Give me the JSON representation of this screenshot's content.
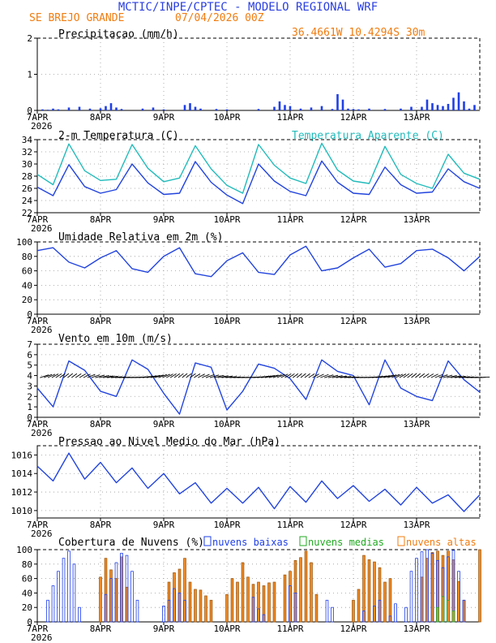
{
  "header": {
    "title": "MCTIC/INPE/CPTEC - MODELO REGIONAL WRF",
    "location": "SE BREJO GRANDE",
    "run": "07/04/2026 00Z",
    "coords": "36.4661W 10.4294S 30m"
  },
  "colors": {
    "title": "#2a3fe0",
    "orange": "#f07c10",
    "blue": "#2244dd",
    "cyan": "#22bbbb",
    "green": "#22aa22",
    "bar_blue": "#1f3fe6",
    "bar_orange": "#f08a24"
  },
  "x_axis": {
    "ticks": [
      "7APR",
      "8APR",
      "9APR",
      "10APR",
      "11APR",
      "12APR",
      "13APR"
    ],
    "year": "2026",
    "hours": 168
  },
  "panels": {
    "precip": {
      "title": "Precipitacao (mm/h)"
    },
    "temp": {
      "title": "2-m Temperatura (C)",
      "legend_apparent": "Temperatura Aparente (C)"
    },
    "rh": {
      "title": "Umidade Relativa em 2m (%)"
    },
    "wind": {
      "title": "Vento em 10m (m/s)"
    },
    "pres": {
      "title": "Pressao ao Nivel Medio do Mar (hPa)"
    },
    "cloud": {
      "title": "Cobertura de Nuvens (%)",
      "legend_low": "nuvens baixas",
      "legend_mid": "nuvens medias",
      "legend_high": "nuvens altas"
    }
  },
  "chart_data": [
    {
      "type": "bar",
      "title": "Precipitacao (mm/h)",
      "ylim": [
        0,
        2
      ],
      "yticks": [
        "0",
        "1",
        "2"
      ],
      "x_hours": [
        2,
        4,
        6,
        8,
        12,
        16,
        20,
        24,
        26,
        28,
        30,
        32,
        40,
        44,
        48,
        56,
        58,
        60,
        62,
        68,
        72,
        84,
        90,
        92,
        94,
        96,
        100,
        104,
        108,
        112,
        114,
        116,
        118,
        120,
        122,
        126,
        132,
        138,
        142,
        146,
        148,
        150,
        152,
        154,
        156,
        158,
        160,
        162,
        164,
        166
      ],
      "values": [
        0.03,
        0.02,
        0.05,
        0.03,
        0.08,
        0.1,
        0.05,
        0.06,
        0.12,
        0.2,
        0.08,
        0.04,
        0.05,
        0.08,
        0.03,
        0.15,
        0.2,
        0.1,
        0.05,
        0.04,
        0.03,
        0.04,
        0.1,
        0.25,
        0.15,
        0.12,
        0.05,
        0.08,
        0.12,
        0.04,
        0.45,
        0.3,
        0.05,
        0.04,
        0.03,
        0.05,
        0.04,
        0.05,
        0.1,
        0.1,
        0.3,
        0.2,
        0.15,
        0.12,
        0.18,
        0.35,
        0.5,
        0.25,
        0.05,
        0.15
      ]
    },
    {
      "type": "line",
      "title": "2-m Temperatura (C)",
      "ylim": [
        22,
        34
      ],
      "yticks": [
        "22",
        "24",
        "26",
        "28",
        "30",
        "32",
        "34"
      ],
      "x_hours": [
        0,
        6,
        12,
        18,
        24,
        30,
        36,
        42,
        48,
        54,
        60,
        66,
        72,
        78,
        84,
        90,
        96,
        102,
        108,
        114,
        120,
        126,
        132,
        138,
        144,
        150,
        156,
        162,
        168
      ],
      "series": [
        {
          "name": "2-m Temperatura (C)",
          "values": [
            26.2,
            24.8,
            29.9,
            26.3,
            25.2,
            25.8,
            30.0,
            26.9,
            25.0,
            25.2,
            30.4,
            27.0,
            24.9,
            23.5,
            30.0,
            27.2,
            25.5,
            24.8,
            30.5,
            27.0,
            25.2,
            25.0,
            29.5,
            26.6,
            25.2,
            25.4,
            29.2,
            27.1,
            26.0
          ]
        },
        {
          "name": "Temperatura Aparente (C)",
          "values": [
            28.3,
            26.6,
            33.3,
            28.9,
            27.3,
            27.5,
            33.2,
            29.3,
            27.1,
            27.7,
            33.0,
            29.2,
            26.5,
            25.2,
            33.2,
            29.8,
            27.7,
            26.8,
            33.4,
            29.0,
            27.2,
            26.8,
            32.9,
            28.3,
            26.8,
            26.0,
            31.6,
            28.5,
            27.5
          ]
        }
      ]
    },
    {
      "type": "line",
      "title": "Umidade Relativa em 2m (%)",
      "ylim": [
        0,
        100
      ],
      "yticks": [
        "0",
        "20",
        "40",
        "60",
        "80",
        "100"
      ],
      "x_hours": [
        0,
        6,
        12,
        18,
        24,
        30,
        36,
        42,
        48,
        54,
        60,
        66,
        72,
        78,
        84,
        90,
        96,
        102,
        108,
        114,
        120,
        126,
        132,
        138,
        144,
        150,
        156,
        162,
        168
      ],
      "series": [
        {
          "name": "",
          "values": [
            88,
            92,
            72,
            64,
            78,
            88,
            63,
            58,
            80,
            92,
            56,
            52,
            74,
            85,
            58,
            55,
            82,
            94,
            60,
            64,
            78,
            90,
            65,
            70,
            88,
            90,
            78,
            60,
            80
          ]
        }
      ]
    },
    {
      "type": "line",
      "title": "Vento em 10m (m/s)",
      "ylim": [
        0,
        7
      ],
      "yticks": [
        "0",
        "1",
        "2",
        "3",
        "4",
        "5",
        "6",
        "7"
      ],
      "x_hours": [
        0,
        6,
        12,
        18,
        24,
        30,
        36,
        42,
        48,
        54,
        60,
        66,
        72,
        78,
        84,
        90,
        96,
        102,
        108,
        114,
        120,
        126,
        132,
        138,
        144,
        150,
        156,
        162,
        168
      ],
      "series": [
        {
          "name": "",
          "values": [
            2.8,
            1.0,
            5.4,
            4.5,
            2.5,
            2.0,
            5.5,
            4.6,
            2.3,
            0.3,
            5.2,
            4.8,
            0.7,
            2.5,
            5.1,
            4.7,
            3.7,
            1.7,
            5.5,
            4.4,
            4.0,
            1.2,
            5.5,
            2.8,
            2.0,
            1.6,
            5.4,
            3.6,
            2.4
          ]
        }
      ]
    },
    {
      "type": "line",
      "title": "Pressao ao Nivel Medio do Mar (hPa)",
      "ylim": [
        1009.2,
        1017
      ],
      "yticks": [
        "1010",
        "1012",
        "1014",
        "1016"
      ],
      "x_hours": [
        0,
        6,
        12,
        18,
        24,
        30,
        36,
        42,
        48,
        54,
        60,
        66,
        72,
        78,
        84,
        90,
        96,
        102,
        108,
        114,
        120,
        126,
        132,
        138,
        144,
        150,
        156,
        162,
        168
      ],
      "series": [
        {
          "name": "",
          "values": [
            1014.8,
            1013.2,
            1016.2,
            1013.4,
            1015.2,
            1013.0,
            1014.6,
            1012.4,
            1014.0,
            1011.8,
            1013.0,
            1010.8,
            1012.4,
            1010.8,
            1012.5,
            1010.2,
            1012.6,
            1010.9,
            1013.2,
            1011.3,
            1012.7,
            1011.0,
            1012.3,
            1010.6,
            1012.5,
            1010.8,
            1011.7,
            1009.9,
            1011.7
          ]
        }
      ]
    },
    {
      "type": "bar",
      "title": "Cobertura de Nuvens (%)",
      "ylim": [
        0,
        100
      ],
      "yticks": [
        "0",
        "20",
        "40",
        "60",
        "80",
        "100"
      ],
      "series": [
        {
          "name": "nuvens baixas",
          "x_hours": [
            4,
            6,
            8,
            10,
            12,
            14,
            16,
            26,
            28,
            30,
            32,
            34,
            36,
            38,
            48,
            50,
            52,
            54,
            56,
            82,
            84,
            86,
            96,
            98,
            110,
            112,
            124,
            128,
            130,
            134,
            136,
            140,
            142,
            144,
            146,
            148,
            150,
            152,
            154,
            156,
            158,
            160,
            162
          ],
          "values": [
            30,
            50,
            70,
            88,
            98,
            80,
            20,
            38,
            60,
            82,
            95,
            92,
            70,
            30,
            22,
            30,
            46,
            40,
            30,
            34,
            18,
            10,
            50,
            40,
            30,
            20,
            15,
            22,
            30,
            8,
            25,
            20,
            70,
            88,
            97,
            100,
            95,
            85,
            75,
            90,
            99,
            70,
            30
          ]
        },
        {
          "name": "nuvens medias",
          "x_hours": [
            152,
            154,
            156,
            158
          ],
          "values": [
            20,
            35,
            30,
            15
          ]
        },
        {
          "name": "nuvens altas",
          "x_hours": [
            24,
            26,
            28,
            30,
            32,
            34,
            50,
            52,
            54,
            56,
            58,
            60,
            62,
            64,
            66,
            72,
            74,
            76,
            78,
            80,
            82,
            84,
            86,
            88,
            90,
            94,
            96,
            98,
            100,
            102,
            104,
            106,
            120,
            122,
            124,
            126,
            128,
            130,
            132,
            134,
            146,
            148,
            150,
            152,
            154,
            156,
            158,
            160,
            162,
            168
          ],
          "values": [
            62,
            88,
            72,
            60,
            90,
            48,
            55,
            68,
            73,
            88,
            55,
            45,
            44,
            36,
            30,
            38,
            60,
            55,
            82,
            62,
            52,
            55,
            50,
            54,
            55,
            65,
            70,
            85,
            89,
            98,
            82,
            38,
            30,
            45,
            92,
            86,
            83,
            75,
            55,
            60,
            62,
            88,
            96,
            98,
            92,
            98,
            86,
            56,
            30,
            100
          ]
        }
      ]
    }
  ]
}
